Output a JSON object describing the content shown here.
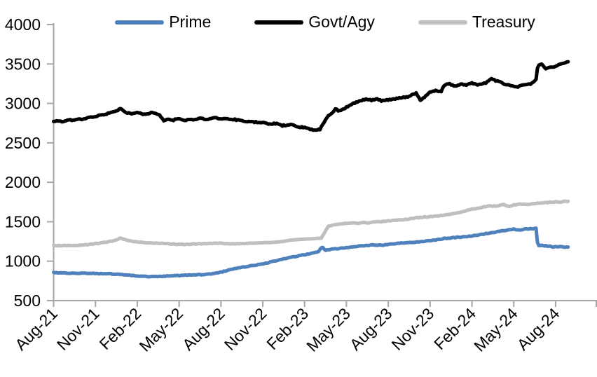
{
  "chart_data": {
    "type": "line",
    "title": "",
    "legend_position": "top",
    "grid": false,
    "colors": {
      "axis": "#A6A6A6",
      "text": "#000000",
      "background": "#FFFFFF"
    },
    "y_axis": {
      "min": 500,
      "max": 4000,
      "tick_step": 500,
      "tick_labels": [
        "4000",
        "3500",
        "3000",
        "2500",
        "2000",
        "1500",
        "1000",
        "500"
      ]
    },
    "x_axis": {
      "unit": "months since Aug-2021",
      "tick_months": [
        0,
        3,
        6,
        9,
        12,
        15,
        18,
        21,
        24,
        27,
        30,
        33,
        36
      ],
      "axis_end_month": 39,
      "labels_rotation": -45,
      "tick_labels": [
        "Aug-21",
        "Nov-21",
        "Feb-22",
        "May-22",
        "Aug-22",
        "Nov-22",
        "Feb-23",
        "May-23",
        "Aug-23",
        "Nov-23",
        "Feb-24",
        "May-24",
        "Aug-24"
      ]
    },
    "series": [
      {
        "name": "Prime",
        "color": "#4F81BD",
        "line_width": 5,
        "jitter": 4,
        "points": [
          [
            0,
            855
          ],
          [
            0.5,
            852
          ],
          [
            1,
            850
          ],
          [
            1.5,
            846
          ],
          [
            2,
            848
          ],
          [
            3,
            845
          ],
          [
            4,
            840
          ],
          [
            4.5,
            835
          ],
          [
            5,
            828
          ],
          [
            5.5,
            820
          ],
          [
            6,
            812
          ],
          [
            6.5,
            806
          ],
          [
            7,
            804
          ],
          [
            7.5,
            806
          ],
          [
            8,
            810
          ],
          [
            8.5,
            815
          ],
          [
            9,
            818
          ],
          [
            9.5,
            822
          ],
          [
            10,
            826
          ],
          [
            10.5,
            828
          ],
          [
            11,
            834
          ],
          [
            11.5,
            845
          ],
          [
            12,
            860
          ],
          [
            12.5,
            885
          ],
          [
            13,
            908
          ],
          [
            13.5,
            922
          ],
          [
            14,
            938
          ],
          [
            14.5,
            950
          ],
          [
            15,
            965
          ],
          [
            15.5,
            985
          ],
          [
            16,
            1008
          ],
          [
            16.5,
            1028
          ],
          [
            17,
            1050
          ],
          [
            17.5,
            1065
          ],
          [
            18,
            1082
          ],
          [
            18.5,
            1100
          ],
          [
            19,
            1122
          ],
          [
            19.25,
            1180
          ],
          [
            19.5,
            1138
          ],
          [
            19.8,
            1148
          ],
          [
            20,
            1152
          ],
          [
            20.5,
            1162
          ],
          [
            21,
            1172
          ],
          [
            21.5,
            1182
          ],
          [
            22,
            1192
          ],
          [
            22.5,
            1200
          ],
          [
            23,
            1206
          ],
          [
            23.5,
            1202
          ],
          [
            24,
            1214
          ],
          [
            24.5,
            1222
          ],
          [
            25,
            1230
          ],
          [
            25.5,
            1236
          ],
          [
            26,
            1242
          ],
          [
            26.5,
            1250
          ],
          [
            27,
            1260
          ],
          [
            27.5,
            1272
          ],
          [
            28,
            1288
          ],
          [
            28.5,
            1295
          ],
          [
            29,
            1303
          ],
          [
            29.5,
            1310
          ],
          [
            30,
            1320
          ],
          [
            30.5,
            1333
          ],
          [
            31,
            1350
          ],
          [
            31.5,
            1362
          ],
          [
            32,
            1380
          ],
          [
            32.5,
            1392
          ],
          [
            33,
            1408
          ],
          [
            33.4,
            1392
          ],
          [
            33.8,
            1408
          ],
          [
            34.2,
            1412
          ],
          [
            34.6,
            1415
          ],
          [
            34.72,
            1202
          ],
          [
            35,
            1198
          ],
          [
            35.5,
            1192
          ],
          [
            35.8,
            1180
          ],
          [
            36.2,
            1185
          ],
          [
            36.5,
            1180
          ],
          [
            36.9,
            1178
          ]
        ]
      },
      {
        "name": "Govt/Agy",
        "color": "#000000",
        "line_width": 5,
        "jitter": 8,
        "points": [
          [
            0,
            2775
          ],
          [
            0.6,
            2768
          ],
          [
            1,
            2785
          ],
          [
            2,
            2802
          ],
          [
            3,
            2838
          ],
          [
            4,
            2875
          ],
          [
            4.8,
            2930
          ],
          [
            5.2,
            2885
          ],
          [
            5.6,
            2862
          ],
          [
            6,
            2890
          ],
          [
            6.4,
            2855
          ],
          [
            7,
            2880
          ],
          [
            7.6,
            2858
          ],
          [
            7.9,
            2772
          ],
          [
            8.2,
            2800
          ],
          [
            8.6,
            2790
          ],
          [
            9,
            2805
          ],
          [
            9.4,
            2790
          ],
          [
            10,
            2797
          ],
          [
            10.5,
            2812
          ],
          [
            11,
            2800
          ],
          [
            11.5,
            2815
          ],
          [
            12,
            2805
          ],
          [
            13,
            2795
          ],
          [
            14,
            2770
          ],
          [
            15,
            2755
          ],
          [
            15.4,
            2738
          ],
          [
            16,
            2745
          ],
          [
            16.4,
            2718
          ],
          [
            17,
            2730
          ],
          [
            17.5,
            2702
          ],
          [
            18,
            2695
          ],
          [
            18.5,
            2668
          ],
          [
            18.8,
            2662
          ],
          [
            19.1,
            2672
          ],
          [
            19.4,
            2760
          ],
          [
            19.7,
            2852
          ],
          [
            20,
            2880
          ],
          [
            20.2,
            2928
          ],
          [
            20.5,
            2905
          ],
          [
            21,
            2950
          ],
          [
            21.5,
            3000
          ],
          [
            22,
            3035
          ],
          [
            22.4,
            3052
          ],
          [
            22.8,
            3040
          ],
          [
            23.2,
            3060
          ],
          [
            23.5,
            3032
          ],
          [
            24,
            3045
          ],
          [
            24.5,
            3060
          ],
          [
            25,
            3072
          ],
          [
            25.5,
            3088
          ],
          [
            26,
            3130
          ],
          [
            26.3,
            3045
          ],
          [
            26.6,
            3080
          ],
          [
            27,
            3140
          ],
          [
            27.4,
            3165
          ],
          [
            27.8,
            3152
          ],
          [
            28,
            3225
          ],
          [
            28.4,
            3250
          ],
          [
            28.8,
            3215
          ],
          [
            29.2,
            3250
          ],
          [
            29.6,
            3230
          ],
          [
            30,
            3258
          ],
          [
            30.4,
            3240
          ],
          [
            31,
            3262
          ],
          [
            31.4,
            3310
          ],
          [
            31.7,
            3290
          ],
          [
            32,
            3282
          ],
          [
            32.4,
            3240
          ],
          [
            32.8,
            3222
          ],
          [
            33.2,
            3205
          ],
          [
            33.6,
            3238
          ],
          [
            34,
            3245
          ],
          [
            34.3,
            3252
          ],
          [
            34.6,
            3300
          ],
          [
            34.72,
            3470
          ],
          [
            35,
            3498
          ],
          [
            35.3,
            3445
          ],
          [
            35.6,
            3462
          ],
          [
            36,
            3470
          ],
          [
            36.4,
            3498
          ],
          [
            36.9,
            3522
          ]
        ]
      },
      {
        "name": "Treasury",
        "color": "#BFBFBF",
        "line_width": 5,
        "jitter": 4,
        "points": [
          [
            0,
            1200
          ],
          [
            0.5,
            1196
          ],
          [
            1,
            1198
          ],
          [
            1.5,
            1196
          ],
          [
            2,
            1203
          ],
          [
            2.5,
            1210
          ],
          [
            3,
            1222
          ],
          [
            3.5,
            1232
          ],
          [
            4,
            1248
          ],
          [
            4.4,
            1262
          ],
          [
            4.8,
            1292
          ],
          [
            5.2,
            1268
          ],
          [
            5.6,
            1252
          ],
          [
            6,
            1243
          ],
          [
            6.5,
            1236
          ],
          [
            7,
            1231
          ],
          [
            7.5,
            1228
          ],
          [
            8,
            1226
          ],
          [
            8.5,
            1218
          ],
          [
            9,
            1213
          ],
          [
            9.5,
            1214
          ],
          [
            10,
            1217
          ],
          [
            10.5,
            1220
          ],
          [
            11,
            1223
          ],
          [
            11.5,
            1226
          ],
          [
            12,
            1227
          ],
          [
            12.5,
            1222
          ],
          [
            13,
            1221
          ],
          [
            13.5,
            1224
          ],
          [
            14,
            1227
          ],
          [
            14.5,
            1229
          ],
          [
            15,
            1233
          ],
          [
            15.5,
            1237
          ],
          [
            16,
            1243
          ],
          [
            16.5,
            1252
          ],
          [
            17,
            1266
          ],
          [
            17.5,
            1273
          ],
          [
            18,
            1281
          ],
          [
            18.5,
            1285
          ],
          [
            19,
            1288
          ],
          [
            19.2,
            1292
          ],
          [
            19.7,
            1442
          ],
          [
            20,
            1458
          ],
          [
            20.5,
            1472
          ],
          [
            21,
            1478
          ],
          [
            21.4,
            1485
          ],
          [
            21.8,
            1480
          ],
          [
            22.2,
            1492
          ],
          [
            22.6,
            1485
          ],
          [
            23,
            1498
          ],
          [
            23.5,
            1502
          ],
          [
            24,
            1512
          ],
          [
            24.5,
            1518
          ],
          [
            25,
            1525
          ],
          [
            25.5,
            1535
          ],
          [
            26,
            1550
          ],
          [
            26.5,
            1558
          ],
          [
            27,
            1565
          ],
          [
            27.5,
            1572
          ],
          [
            28,
            1585
          ],
          [
            28.5,
            1596
          ],
          [
            29,
            1614
          ],
          [
            29.5,
            1636
          ],
          [
            30,
            1660
          ],
          [
            30.5,
            1673
          ],
          [
            31,
            1692
          ],
          [
            31.3,
            1702
          ],
          [
            31.6,
            1698
          ],
          [
            32,
            1705
          ],
          [
            32.3,
            1718
          ],
          [
            32.6,
            1693
          ],
          [
            33,
            1713
          ],
          [
            33.5,
            1723
          ],
          [
            34,
            1721
          ],
          [
            34.5,
            1729
          ],
          [
            35,
            1739
          ],
          [
            35.5,
            1744
          ],
          [
            36,
            1753
          ],
          [
            36.3,
            1747
          ],
          [
            36.6,
            1757
          ],
          [
            36.9,
            1760
          ]
        ]
      }
    ]
  }
}
